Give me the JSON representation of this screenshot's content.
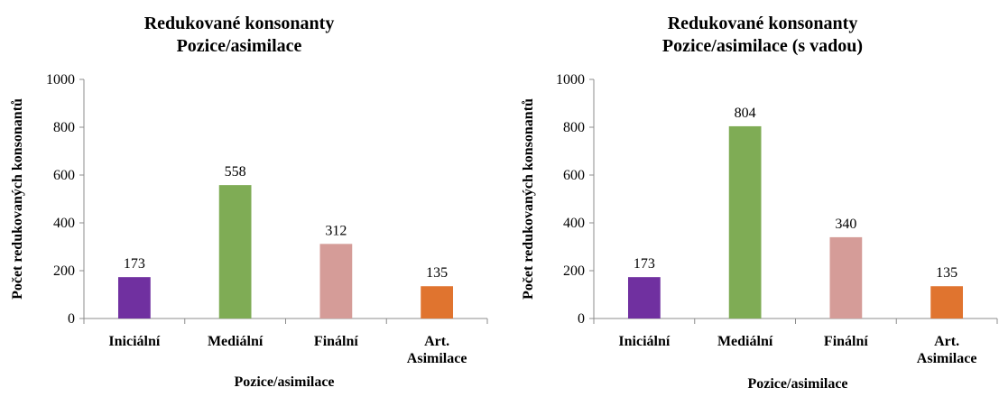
{
  "chart_data": [
    {
      "type": "bar",
      "title": [
        "Redukované konsonanty",
        "Pozice/asimilace"
      ],
      "xlabel": "Pozice/asimilace",
      "ylabel": "Počet redukovaných konsonantů",
      "categories": [
        [
          "Iniciální"
        ],
        [
          "Mediální"
        ],
        [
          "Finální"
        ],
        [
          "Art.",
          "Asimilace"
        ]
      ],
      "values": [
        173,
        558,
        312,
        135
      ],
      "colors": [
        "#7030a0",
        "#7fac55",
        "#d59c98",
        "#e0742f"
      ],
      "ylim": [
        0,
        1000
      ],
      "yticks": [
        "0",
        "200",
        "400",
        "600",
        "800",
        "1000"
      ],
      "grid": false,
      "legend": "none"
    },
    {
      "type": "bar",
      "title": [
        "Redukované konsonanty",
        "Pozice/asimilace (s vadou)"
      ],
      "xlabel": "Pozice/asimilace",
      "ylabel": "Počet redukovaných konsonantů",
      "categories": [
        [
          "Iniciální"
        ],
        [
          "Mediální"
        ],
        [
          "Finální"
        ],
        [
          "Art.",
          "Asimilace"
        ]
      ],
      "values": [
        173,
        804,
        340,
        135
      ],
      "colors": [
        "#7030a0",
        "#7fac55",
        "#d59c98",
        "#e0742f"
      ],
      "ylim": [
        0,
        1000
      ],
      "yticks": [
        "0",
        "200",
        "400",
        "600",
        "800",
        "1000"
      ],
      "grid": false,
      "legend": "none"
    }
  ]
}
